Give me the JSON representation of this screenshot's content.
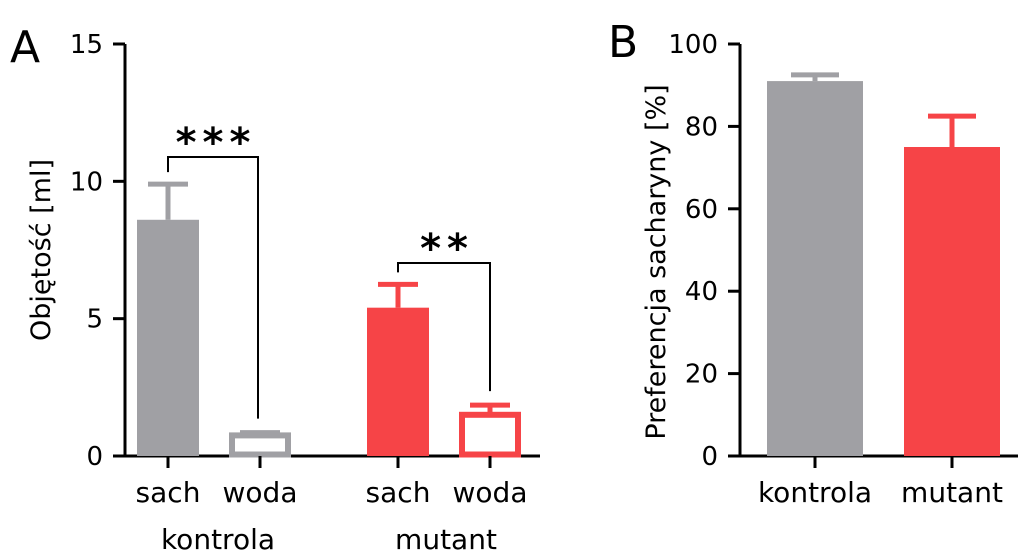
{
  "colors": {
    "kontrola": "#a0a0a4",
    "mutant": "#f64447",
    "axis": "#000000"
  },
  "chart_data": [
    {
      "panel": "A",
      "type": "bar",
      "ylabel": "Objętość [ml]",
      "ylim": [
        0,
        15
      ],
      "yticks": [
        0,
        5,
        10,
        15
      ],
      "grid": false,
      "groups": [
        {
          "label": "kontrola",
          "bars": [
            {
              "label": "sach",
              "value": 8.6,
              "error": 1.3,
              "color": "#a0a0a4",
              "filled": true
            },
            {
              "label": "woda",
              "value": 0.75,
              "error": 0.1,
              "color": "#a0a0a4",
              "filled": false
            }
          ],
          "significance": "***"
        },
        {
          "label": "mutant",
          "bars": [
            {
              "label": "sach",
              "value": 5.4,
              "error": 0.85,
              "color": "#f64447",
              "filled": true
            },
            {
              "label": "woda",
              "value": 1.5,
              "error": 0.35,
              "color": "#f64447",
              "filled": false
            }
          ],
          "significance": "**"
        }
      ]
    },
    {
      "panel": "B",
      "type": "bar",
      "ylabel": "Preferencja sacharyny [%]",
      "ylim": [
        0,
        100
      ],
      "yticks": [
        0,
        20,
        40,
        60,
        80,
        100
      ],
      "grid": false,
      "bars": [
        {
          "label": "kontrola",
          "value": 91,
          "error": 1.5,
          "color": "#a0a0a4"
        },
        {
          "label": "mutant",
          "value": 75,
          "error": 7.5,
          "color": "#f64447"
        }
      ]
    }
  ]
}
